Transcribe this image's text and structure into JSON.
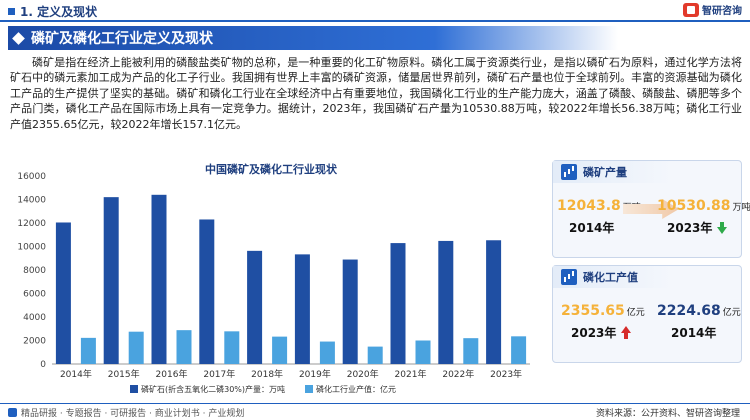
{
  "header": {
    "section_title": "1. 定义及现状",
    "brand": "智研咨询"
  },
  "banner": {
    "title": "磷矿及磷化工行业定义及现状"
  },
  "intro": "磷矿是指在经济上能被利用的磷酸盐类矿物的总称，是一种重要的化工矿物原料。磷化工属于资源类行业，是指以磷矿石为原料，通过化学方法将矿石中的磷元素加工成为产品的化工子行业。我国拥有世界上丰富的磷矿资源，储量居世界前列，磷矿石产量也位于全球前列。丰富的资源基础为磷化工产品的生产提供了坚实的基础。磷矿和磷化工行业在全球经济中占有重要地位，我国磷化工行业的生产能力庞大，涵盖了磷酸、磷酸盐、磷肥等多个产品门类，磷化工产品在国际市场上具有一定竞争力。据统计，2023年，我国磷矿石产量为10530.88万吨，较2022年增长56.38万吨；磷化工行业产值2355.65亿元，较2022年增长157.1亿元。",
  "chart_data": {
    "type": "bar",
    "title": "中国磷矿及磷化工行业现状",
    "categories": [
      "2014年",
      "2015年",
      "2016年",
      "2017年",
      "2018年",
      "2019年",
      "2020年",
      "2021年",
      "2022年",
      "2023年"
    ],
    "series": [
      {
        "name": "磷矿石(折含五氧化二磷30%)产量：万吨",
        "color": "#1f4fa3",
        "values": [
          12043.8,
          14200,
          14400,
          12300,
          9630,
          9330,
          8890,
          10290,
          10474.5,
          10530.88
        ]
      },
      {
        "name": "磷化工行业产值：亿元",
        "color": "#4aa3df",
        "values": [
          2224.68,
          2750,
          2880,
          2780,
          2330,
          1910,
          1480,
          2000,
          2198.55,
          2355.65
        ]
      }
    ],
    "yticks": [
      "0",
      "2000",
      "4000",
      "6000",
      "8000",
      "10000",
      "12000",
      "14000",
      "16000"
    ],
    "ylim": [
      0,
      16000
    ],
    "grid": false,
    "legend_position": "bottom"
  },
  "cards": {
    "ore": {
      "title": "磷矿产量",
      "left_value": "12043.8",
      "left_unit": "万吨",
      "left_year": "2014年",
      "right_value": "10530.88",
      "right_unit": "万吨",
      "right_year": "2023年",
      "trend": "down"
    },
    "output": {
      "title": "磷化工产值",
      "left_value": "2355.65",
      "left_unit": "亿元",
      "left_year": "2023年",
      "right_value": "2224.68",
      "right_unit": "亿元",
      "right_year": "2014年",
      "trend": "up"
    }
  },
  "footer": {
    "left": "精品研报 · 专题报告 · 可研报告 · 商业计划书 · 产业规划",
    "right": "资料来源：公开资料、智研咨询整理"
  }
}
